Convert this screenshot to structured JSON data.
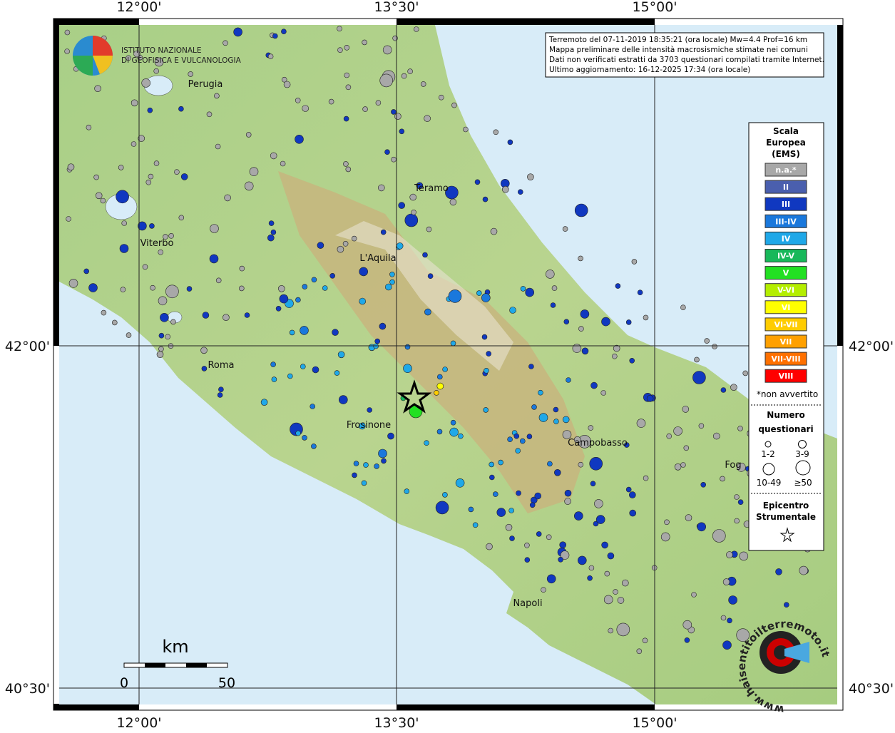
{
  "header": {
    "logo_line1": "ISTITUTO NAZIONALE",
    "logo_line2": "DI GEOFISICA E VULCANOLOGIA"
  },
  "info": [
    "Terremoto del 07-11-2019 18:35:21 (ora locale) Mw=4.4 Prof=16 km",
    "Mappa preliminare delle intensità macrosismiche stimate nei comuni",
    "Dati non verificati estratti da 3703 questionari compilati tramite Internet.",
    "Ultimo aggiornamento: 16-12-2025 17:34 (ora locale)"
  ],
  "axes": {
    "lon": [
      "12°00'",
      "13°30'",
      "15°00'"
    ],
    "lat": [
      "42°00'",
      "40°30'"
    ]
  },
  "cities": [
    "Perugia",
    "Teramo",
    "Viterbo",
    "L'Aquila",
    "Roma",
    "Frosinone",
    "Campobasso",
    "Napoli",
    "Fog"
  ],
  "legend": {
    "title": [
      "Scala",
      "Europea",
      "(EMS)"
    ],
    "classes": [
      {
        "label": "n.a.*",
        "color": "#a8a8a8"
      },
      {
        "label": "II",
        "color": "#4a5fae"
      },
      {
        "label": "III",
        "color": "#1038c0"
      },
      {
        "label": "III-IV",
        "color": "#1a78dc"
      },
      {
        "label": "IV",
        "color": "#1fa8e8"
      },
      {
        "label": "IV-V",
        "color": "#18b85a"
      },
      {
        "label": "V",
        "color": "#22e022"
      },
      {
        "label": "V-VI",
        "color": "#b4ee00"
      },
      {
        "label": "VI",
        "color": "#ffff00"
      },
      {
        "label": "VI-VII",
        "color": "#ffcc00"
      },
      {
        "label": "VII",
        "color": "#ffa000"
      },
      {
        "label": "VII-VIII",
        "color": "#ff7000"
      },
      {
        "label": "VIII",
        "color": "#ff0000"
      }
    ],
    "note": "*non avvertito",
    "count_title": [
      "Numero",
      "questionari"
    ],
    "sizes": [
      "1-2",
      "3-9",
      "10-49",
      "≥50"
    ],
    "epicenter_title": [
      "Epicentro",
      "Strumentale"
    ]
  },
  "scale": {
    "unit": "km",
    "labels": [
      0,
      50
    ]
  },
  "watermark": "www.haisentitoilterremoto.it"
}
